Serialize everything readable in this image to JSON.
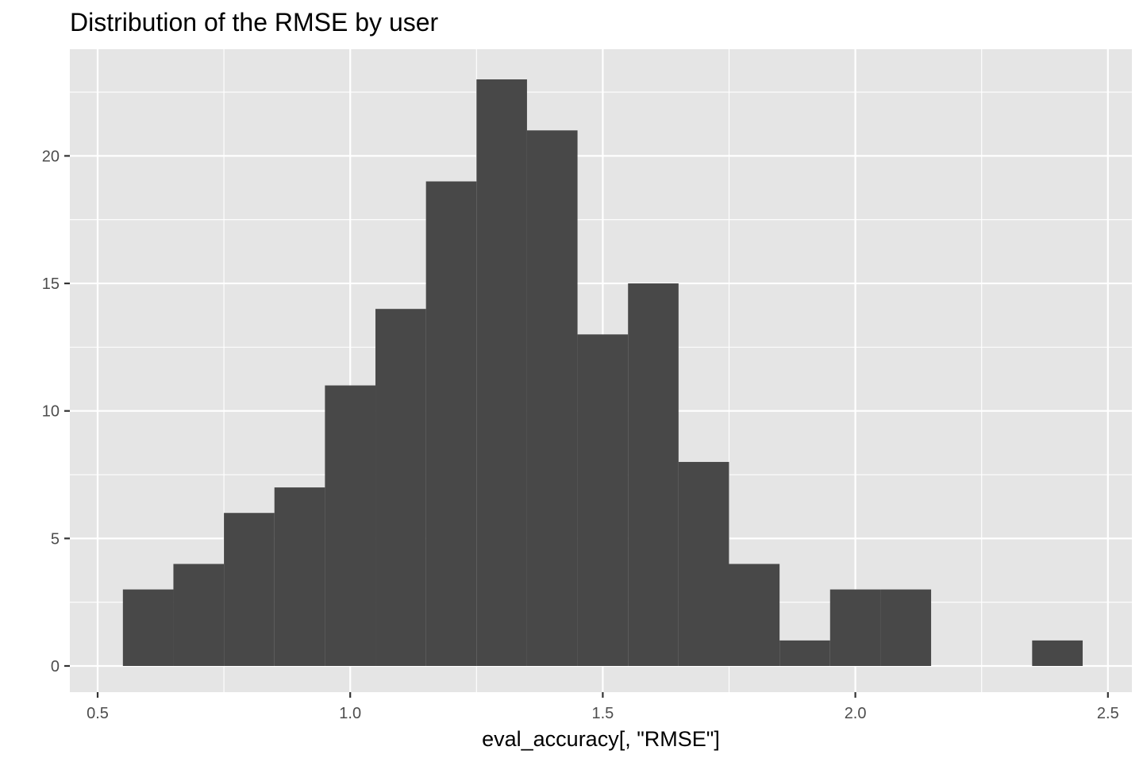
{
  "chart_data": {
    "type": "bar",
    "title": "Distribution of the RMSE by user",
    "xlabel": "eval_accuracy[, \"RMSE\"]",
    "ylabel": "",
    "xlim": [
      0.5,
      2.5
    ],
    "ylim": [
      0,
      23
    ],
    "grid": true,
    "bin_width": 0.1,
    "bins": [
      {
        "x0": 0.55,
        "x1": 0.65,
        "count": 3
      },
      {
        "x0": 0.65,
        "x1": 0.75,
        "count": 4
      },
      {
        "x0": 0.75,
        "x1": 0.85,
        "count": 6
      },
      {
        "x0": 0.85,
        "x1": 0.95,
        "count": 7
      },
      {
        "x0": 0.95,
        "x1": 1.05,
        "count": 11
      },
      {
        "x0": 1.05,
        "x1": 1.15,
        "count": 14
      },
      {
        "x0": 1.15,
        "x1": 1.25,
        "count": 19
      },
      {
        "x0": 1.25,
        "x1": 1.35,
        "count": 23
      },
      {
        "x0": 1.35,
        "x1": 1.45,
        "count": 21
      },
      {
        "x0": 1.45,
        "x1": 1.55,
        "count": 13
      },
      {
        "x0": 1.55,
        "x1": 1.65,
        "count": 15
      },
      {
        "x0": 1.65,
        "x1": 1.75,
        "count": 8
      },
      {
        "x0": 1.75,
        "x1": 1.85,
        "count": 4
      },
      {
        "x0": 1.85,
        "x1": 1.95,
        "count": 1
      },
      {
        "x0": 1.95,
        "x1": 2.05,
        "count": 3
      },
      {
        "x0": 2.05,
        "x1": 2.15,
        "count": 3
      },
      {
        "x0": 2.15,
        "x1": 2.25,
        "count": 0
      },
      {
        "x0": 2.25,
        "x1": 2.35,
        "count": 0
      },
      {
        "x0": 2.35,
        "x1": 2.45,
        "count": 1
      }
    ],
    "x_ticks": [
      {
        "value": 0.5,
        "label": "0.5"
      },
      {
        "value": 1.0,
        "label": "1.0"
      },
      {
        "value": 1.5,
        "label": "1.5"
      },
      {
        "value": 2.0,
        "label": "2.0"
      },
      {
        "value": 2.5,
        "label": "2.5"
      }
    ],
    "y_ticks": [
      {
        "value": 0,
        "label": "0"
      },
      {
        "value": 5,
        "label": "5"
      },
      {
        "value": 10,
        "label": "10"
      },
      {
        "value": 15,
        "label": "15"
      },
      {
        "value": 20,
        "label": "20"
      }
    ],
    "colors": {
      "panel_background": "#e5e5e5",
      "grid_major": "#ffffff",
      "bar_fill": "#484848"
    }
  }
}
